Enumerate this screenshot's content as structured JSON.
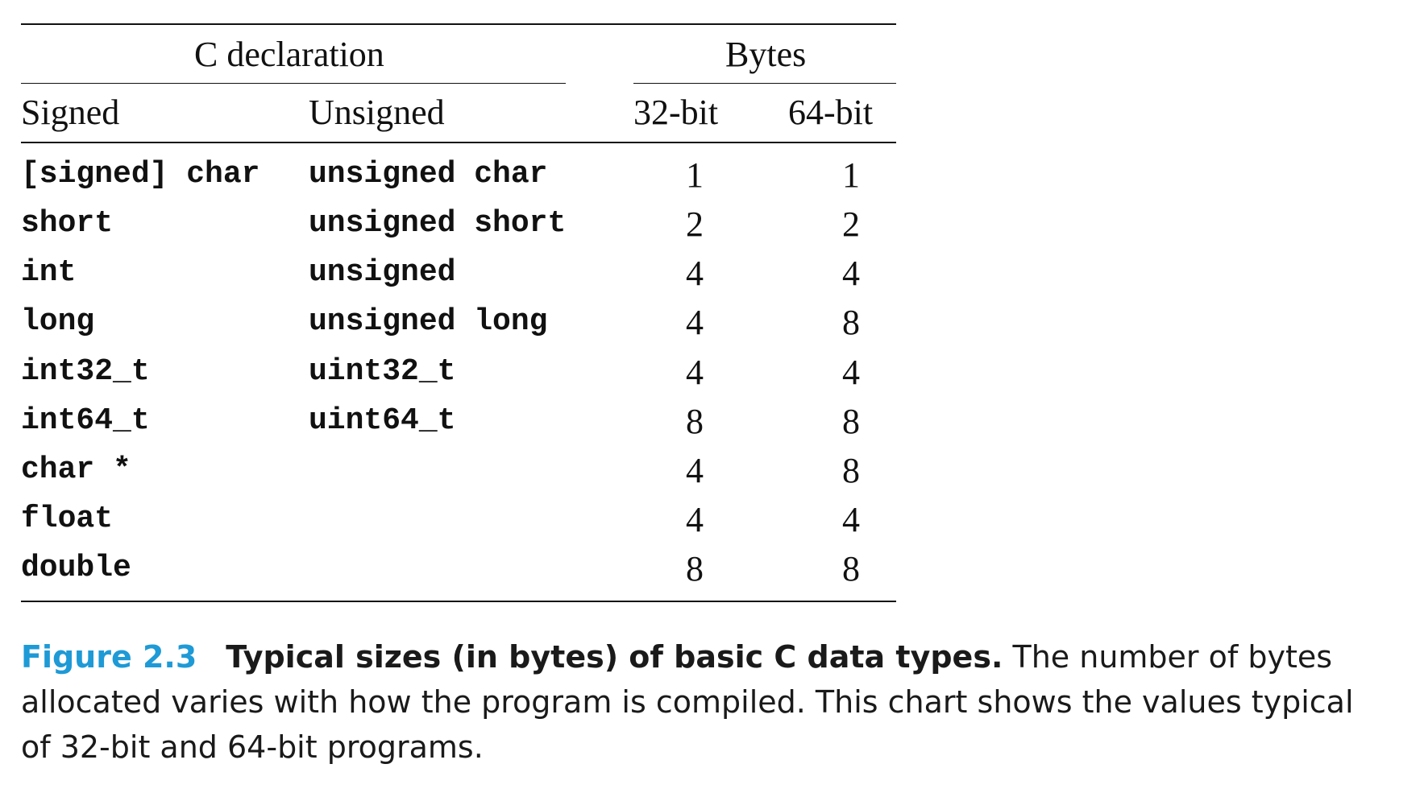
{
  "table": {
    "group_headers": {
      "declaration": "C declaration",
      "bytes": "Bytes"
    },
    "column_headers": [
      "Signed",
      "Unsigned",
      "32-bit",
      "64-bit"
    ],
    "rows": [
      {
        "signed": "[signed] char",
        "unsigned": "unsigned char",
        "b32": "1",
        "b64": "1"
      },
      {
        "signed": "short",
        "unsigned": "unsigned short",
        "b32": "2",
        "b64": "2"
      },
      {
        "signed": "int",
        "unsigned": "unsigned",
        "b32": "4",
        "b64": "4"
      },
      {
        "signed": "long",
        "unsigned": "unsigned long",
        "b32": "4",
        "b64": "8"
      },
      {
        "signed": "int32_t",
        "unsigned": "uint32_t",
        "b32": "4",
        "b64": "4"
      },
      {
        "signed": "int64_t",
        "unsigned": "uint64_t",
        "b32": "8",
        "b64": "8"
      },
      {
        "signed": "char *",
        "unsigned": "",
        "b32": "4",
        "b64": "8"
      },
      {
        "signed": "float",
        "unsigned": "",
        "b32": "4",
        "b64": "4"
      },
      {
        "signed": "double",
        "unsigned": "",
        "b32": "8",
        "b64": "8"
      }
    ]
  },
  "caption": {
    "label": "Figure 2.3",
    "title": "Typical sizes (in bytes) of basic C data types.",
    "text": "The number of bytes allocated varies with how the program is compiled. This chart shows the values typical of 32-bit and 64-bit programs."
  },
  "colors": {
    "figure_label": "#1e9ad6",
    "text": "#111111"
  }
}
